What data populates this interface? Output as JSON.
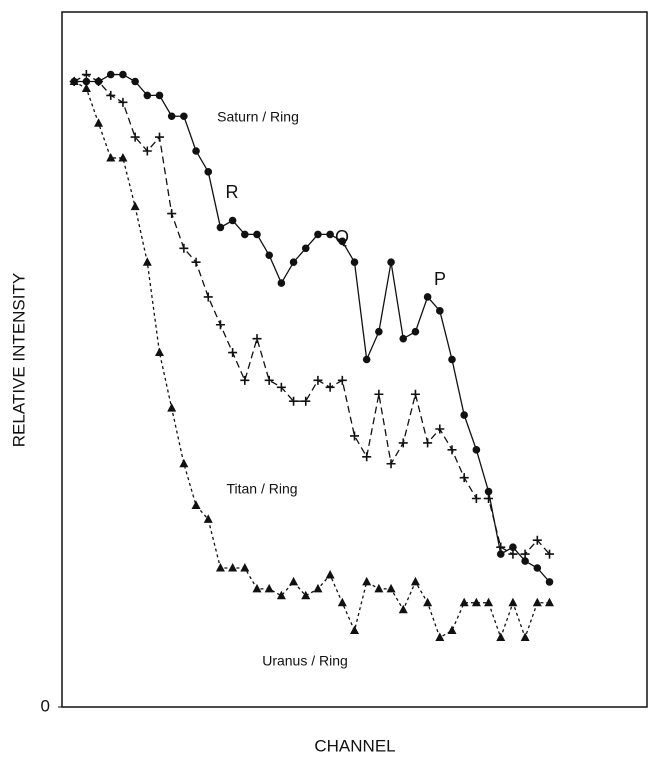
{
  "chart_data": {
    "type": "line",
    "ylabel": "RELATIVE INTENSITY",
    "xlabel": "CHANNEL",
    "annotations": [
      "R",
      "Q",
      "P"
    ],
    "x": [
      1,
      2,
      3,
      4,
      5,
      6,
      7,
      8,
      9,
      10,
      11,
      12,
      13,
      14,
      15,
      16,
      17,
      18,
      19,
      20,
      21,
      22,
      23,
      24,
      25,
      26,
      27,
      28,
      29,
      30,
      31,
      32,
      33,
      34,
      35,
      36,
      37,
      38,
      39,
      40
    ],
    "series": [
      {
        "name": "Saturn / Ring",
        "color": "#111111",
        "marker": "circle",
        "values": [
          90,
          90,
          90,
          91,
          91,
          90,
          88,
          88,
          85,
          85,
          80,
          77,
          69,
          70,
          68,
          68,
          65,
          61,
          64,
          66,
          68,
          68,
          67,
          64,
          50,
          54,
          64,
          53,
          54,
          59,
          57,
          50,
          42,
          37,
          31,
          22,
          23,
          21,
          20,
          18
        ]
      },
      {
        "name": "Titan / Ring",
        "color": "#111111",
        "marker": "plus",
        "values": [
          90,
          91,
          90,
          88,
          87,
          82,
          80,
          82,
          71,
          66,
          64,
          59,
          55,
          51,
          47,
          53,
          47,
          46,
          44,
          44,
          47,
          46,
          47,
          39,
          36,
          45,
          35,
          38,
          45,
          38,
          40,
          37,
          33,
          30,
          30,
          23,
          22,
          22,
          24,
          22
        ]
      },
      {
        "name": "Uranus / Ring",
        "color": "#111111",
        "marker": "triangle",
        "values": [
          90,
          89,
          84,
          79,
          79,
          72,
          64,
          51,
          43,
          35,
          29,
          27,
          20,
          20,
          20,
          17,
          17,
          16,
          18,
          16,
          17,
          19,
          15,
          11,
          18,
          17,
          17,
          14,
          18,
          15,
          10,
          11,
          15,
          15,
          15,
          10,
          15,
          10,
          15,
          15
        ]
      }
    ],
    "xlim": [
      0,
      48
    ],
    "ylim": [
      0,
      100
    ],
    "yticks": [
      0
    ]
  }
}
